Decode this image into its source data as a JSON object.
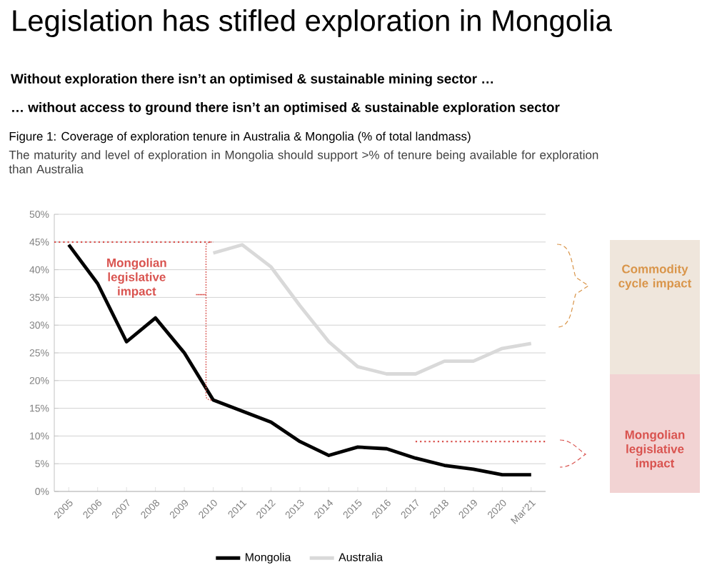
{
  "chart_data": {
    "type": "line",
    "title": "Legislation has stifled exploration in Mongolia",
    "subtitle": "Without exploration there isn’t an optimised & sustainable mining sector …",
    "annotations": [
      "… without access to ground there isn’t an optimised & sustainable exploration sector",
      "Figure 1: Coverage of exploration tenure in Australia & Mongolia (% of total landmass)",
      "The maturity and level of exploration in Mongolia should support >% of tenure being available for exploration than Australia",
      "Mongolian legislative impact",
      "Commodity cycle impact",
      "Mongolian legislative impact"
    ],
    "categories": [
      "2005",
      "2006",
      "2007",
      "2008",
      "2009",
      "2010",
      "2011",
      "2012",
      "2013",
      "2014",
      "2015",
      "2016",
      "2017",
      "2018",
      "2019",
      "2020",
      "Mar'21"
    ],
    "series": [
      {
        "name": "Mongolia",
        "color": "#000000",
        "values": [
          44.5,
          37.5,
          27,
          31.3,
          25,
          16.5,
          14.5,
          12.5,
          9,
          6.5,
          8,
          7.7,
          6,
          4.7,
          4,
          3,
          3
        ]
      },
      {
        "name": "Australia",
        "color": "#d9d9d9",
        "values": [
          null,
          null,
          null,
          null,
          null,
          43,
          44.5,
          40.5,
          33.5,
          27,
          22.5,
          21.2,
          21.2,
          23.5,
          23.5,
          25.8,
          26.7
        ]
      }
    ],
    "ylim": [
      0,
      50
    ],
    "yticks": [
      {
        "value": 0,
        "label": "0%"
      },
      {
        "value": 5,
        "label": "5%"
      },
      {
        "value": 10,
        "label": "10%"
      },
      {
        "value": 15,
        "label": "15%"
      },
      {
        "value": 20,
        "label": "20%"
      },
      {
        "value": 25,
        "label": "25%"
      },
      {
        "value": 30,
        "label": "30%"
      },
      {
        "value": 35,
        "label": "35%"
      },
      {
        "value": 40,
        "label": "40%"
      },
      {
        "value": 45,
        "label": "45%"
      },
      {
        "value": 50,
        "label": "50%"
      }
    ],
    "ref_lines": [
      {
        "axis": "y",
        "value": 45,
        "color": "#d9534f",
        "line_style": "dotted"
      },
      {
        "axis": "y",
        "value": 9,
        "color": "#d9534f",
        "line_style": "dotted"
      }
    ],
    "grid": "y",
    "legend": "bottom",
    "marker": "none",
    "line_style": "solid"
  }
}
